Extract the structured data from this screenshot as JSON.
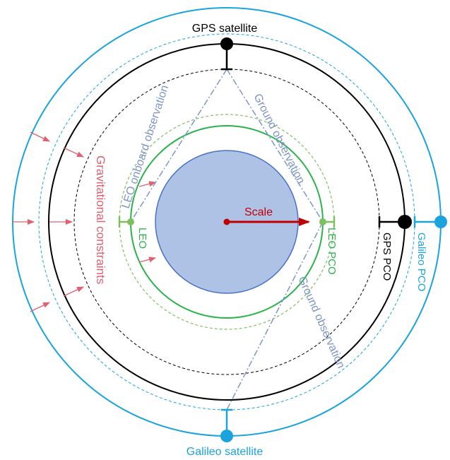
{
  "labels": {
    "gps_satellite": "GPS satellite",
    "galileo_satellite": "Galileo satellite",
    "gps_pco": "GPS PCO",
    "galileo_pco": "Galileo PCO",
    "leo": "LEO",
    "leo_pco": "LEO PCO",
    "scale": "Scale",
    "gravitational_constraints": "Gravitational constraints",
    "leo_onboard_observation": "LEO onboard observation",
    "ground_observation_upper": "Ground observation",
    "ground_observation_lower": "Ground observation"
  },
  "colors": {
    "galileo": "#1aa3dd",
    "gps": "#000000",
    "leo": "#2bb34a",
    "leo_light": "#7fbf5f",
    "earth_fill": "#aec2e6",
    "earth_stroke": "#4a72c4",
    "scale": "#c00000",
    "observation": "#7f95c8",
    "gravity": "#e06070"
  }
}
